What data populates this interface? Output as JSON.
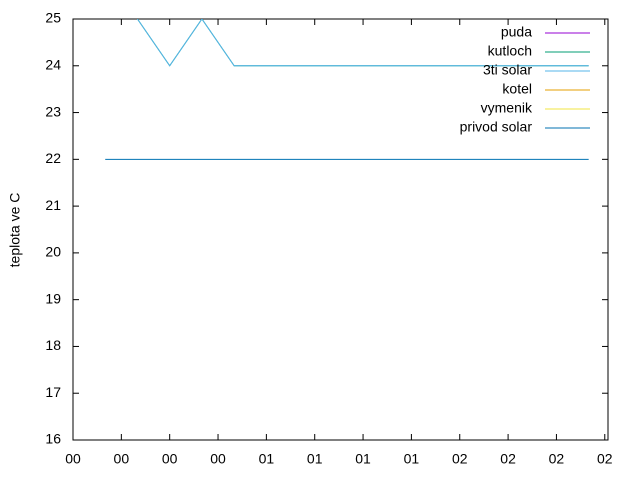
{
  "chart_data": {
    "type": "line",
    "ylabel": "teplota ve C",
    "x": [
      10,
      20,
      30,
      40,
      50,
      160
    ],
    "series": [
      {
        "name": "puda",
        "color": "#9400d3",
        "values": [
          null,
          null,
          null,
          null,
          null,
          null
        ]
      },
      {
        "name": "kutloch",
        "color": "#009e73",
        "values": [
          null,
          25,
          24,
          25,
          24,
          24
        ]
      },
      {
        "name": "3ti solar",
        "color": "#56b4e9",
        "values": [
          null,
          25,
          24,
          25,
          24,
          24
        ]
      },
      {
        "name": "kotel",
        "color": "#e69f00",
        "values": [
          null,
          null,
          null,
          null,
          null,
          null
        ]
      },
      {
        "name": "vymenik",
        "color": "#f0e442",
        "values": [
          null,
          null,
          null,
          null,
          null,
          null
        ]
      },
      {
        "name": "privod solar",
        "color": "#0072b2",
        "values": [
          22,
          22,
          22,
          22,
          22,
          22
        ]
      }
    ],
    "xlim": [
      0,
      166
    ],
    "xticks": [
      {
        "value": 0,
        "label": "00"
      },
      {
        "value": 15,
        "label": "00"
      },
      {
        "value": 30,
        "label": "00"
      },
      {
        "value": 45,
        "label": "00"
      },
      {
        "value": 60,
        "label": "01"
      },
      {
        "value": 75,
        "label": "01"
      },
      {
        "value": 90,
        "label": "01"
      },
      {
        "value": 105,
        "label": "01"
      },
      {
        "value": 120,
        "label": "02"
      },
      {
        "value": 135,
        "label": "02"
      },
      {
        "value": 150,
        "label": "02"
      },
      {
        "value": 165,
        "label": "02"
      }
    ],
    "ylim": [
      16,
      25
    ],
    "yticks": [
      16,
      17,
      18,
      19,
      20,
      21,
      22,
      23,
      24,
      25
    ],
    "legend": "top-right",
    "grid": false
  }
}
